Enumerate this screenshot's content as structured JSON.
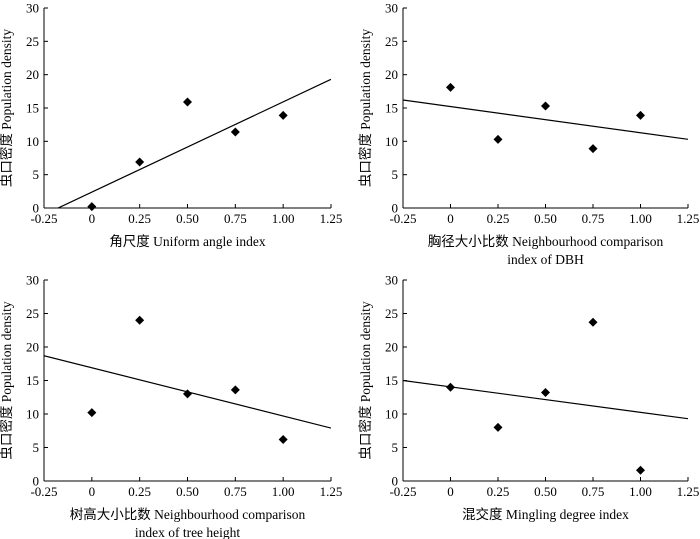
{
  "chart_data": [
    {
      "type": "scatter",
      "xlabel": [
        "角尺度 Uniform angle index"
      ],
      "ylabel": "虫口密度 Population density",
      "xlim": [
        -0.25,
        1.25
      ],
      "ylim": [
        0,
        30
      ],
      "xticks": [
        "-0.25",
        "0",
        "0.25",
        "0.50",
        "0.75",
        "1.00",
        "1.25"
      ],
      "yticks": [
        "0",
        "5",
        "10",
        "15",
        "20",
        "25",
        "30"
      ],
      "points": [
        {
          "x": 0,
          "y": 0.2
        },
        {
          "x": 0.25,
          "y": 6.9
        },
        {
          "x": 0.5,
          "y": 15.9
        },
        {
          "x": 0.75,
          "y": 11.4
        },
        {
          "x": 1.0,
          "y": 13.9
        }
      ],
      "trendline": {
        "x": [
          -0.25,
          1.25
        ],
        "y": [
          -1.0,
          19.3
        ]
      }
    },
    {
      "type": "scatter",
      "xlabel": [
        "胸径大小比数 Neighbourhood comparison",
        "index of DBH"
      ],
      "ylabel": "虫口密度 Population density",
      "xlim": [
        -0.25,
        1.25
      ],
      "ylim": [
        0,
        30
      ],
      "xticks": [
        "-0.25",
        "0",
        "0.25",
        "0.50",
        "0.75",
        "1.00",
        "1.25"
      ],
      "yticks": [
        "0",
        "5",
        "10",
        "15",
        "20",
        "25",
        "30"
      ],
      "points": [
        {
          "x": 0,
          "y": 18.1
        },
        {
          "x": 0.25,
          "y": 10.3
        },
        {
          "x": 0.5,
          "y": 15.3
        },
        {
          "x": 0.75,
          "y": 8.9
        },
        {
          "x": 1.0,
          "y": 13.9
        }
      ],
      "trendline": {
        "x": [
          -0.25,
          1.25
        ],
        "y": [
          16.2,
          10.3
        ]
      }
    },
    {
      "type": "scatter",
      "xlabel": [
        "树高大小比数 Neighbourhood comparison",
        "index of tree height"
      ],
      "ylabel": "虫口密度 Population density",
      "xlim": [
        -0.25,
        1.25
      ],
      "ylim": [
        0,
        30
      ],
      "xticks": [
        "-0.25",
        "0",
        "0.25",
        "0.50",
        "0.75",
        "1.00",
        "1.25"
      ],
      "yticks": [
        "0",
        "5",
        "10",
        "15",
        "20",
        "25",
        "30"
      ],
      "points": [
        {
          "x": 0,
          "y": 10.2
        },
        {
          "x": 0.25,
          "y": 24.0
        },
        {
          "x": 0.5,
          "y": 13.0
        },
        {
          "x": 0.75,
          "y": 13.6
        },
        {
          "x": 1.0,
          "y": 6.2
        }
      ],
      "trendline": {
        "x": [
          -0.25,
          1.25
        ],
        "y": [
          18.7,
          7.9
        ]
      }
    },
    {
      "type": "scatter",
      "xlabel": [
        "混交度 Mingling degree index"
      ],
      "ylabel": "虫口密度 Population density",
      "xlim": [
        -0.25,
        1.25
      ],
      "ylim": [
        0,
        30
      ],
      "xticks": [
        "-0.25",
        "0",
        "0.25",
        "0.50",
        "0.75",
        "1.00",
        "1.25"
      ],
      "yticks": [
        "0",
        "5",
        "10",
        "15",
        "20",
        "25",
        "30"
      ],
      "points": [
        {
          "x": 0,
          "y": 14.0
        },
        {
          "x": 0.25,
          "y": 8.0
        },
        {
          "x": 0.5,
          "y": 13.2
        },
        {
          "x": 0.75,
          "y": 23.7
        },
        {
          "x": 1.0,
          "y": 1.6
        }
      ],
      "trendline": {
        "x": [
          -0.25,
          1.25
        ],
        "y": [
          15.0,
          9.3
        ]
      }
    }
  ]
}
